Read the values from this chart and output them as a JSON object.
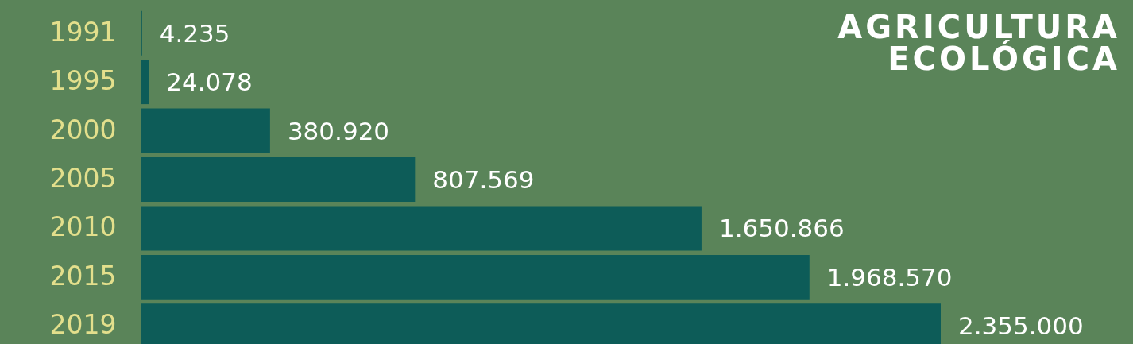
{
  "chart_data": {
    "type": "bar",
    "orientation": "horizontal",
    "title": "AGRICULTURA\nECOLÓGICA",
    "categories": [
      "1991",
      "1995",
      "2000",
      "2005",
      "2010",
      "2015",
      "2019"
    ],
    "values": [
      4235,
      24078,
      380920,
      807569,
      1650866,
      1968570,
      2355000
    ],
    "value_labels": [
      "4.235",
      "24.078",
      "380.920",
      "807.569",
      "1.650.866",
      "1.968.570",
      "2.355.000"
    ],
    "color": "#0d5c58",
    "tick_labels": "y"
  }
}
